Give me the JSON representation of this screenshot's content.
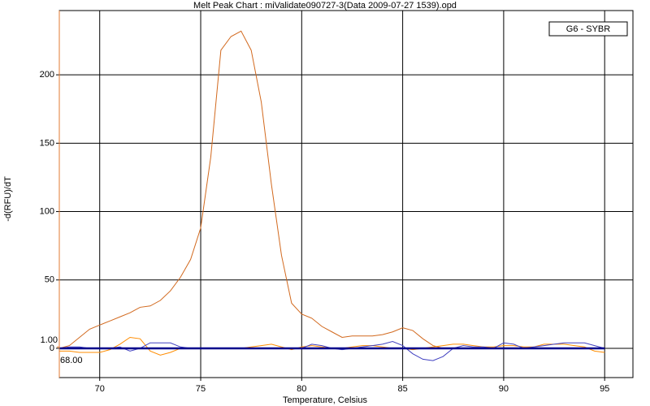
{
  "chart_data": {
    "type": "line",
    "title": "Melt Peak Chart : miValidate090727-3(Data 2009-07-27 1539).opd",
    "x_label": "Temperature, Celsius",
    "y_label": "-d(RFU)/dT",
    "legend": "G6 - SYBR",
    "grid": true,
    "xlim": [
      68,
      96.4
    ],
    "ylim": [
      -21.4,
      247
    ],
    "xticks": [
      70,
      75,
      80,
      85,
      90,
      95
    ],
    "yticks": [
      0,
      50,
      100,
      150,
      200
    ],
    "marker": {
      "x": {
        "value": 68,
        "label": "68.00"
      },
      "y": {
        "value": 1,
        "label": "1.00"
      },
      "color": "#e07a30"
    },
    "x": [
      68,
      68.5,
      69,
      69.5,
      70,
      70.5,
      71,
      71.5,
      72,
      72.5,
      73,
      73.5,
      74,
      74.5,
      75,
      75.5,
      76,
      76.5,
      77,
      77.5,
      78,
      78.5,
      79,
      79.5,
      80,
      80.5,
      81,
      81.5,
      82,
      82.5,
      83,
      83.5,
      84,
      84.5,
      85,
      85.5,
      86,
      86.5,
      87,
      87.5,
      88,
      88.5,
      89,
      89.5,
      90,
      90.5,
      91,
      91.5,
      92,
      92.5,
      93,
      93.5,
      94,
      94.5,
      95
    ],
    "series": [
      {
        "color": "#d2691e",
        "width": 1,
        "values": [
          0,
          2,
          8,
          14,
          17,
          20,
          23,
          26,
          30,
          31,
          35,
          42,
          52,
          65,
          88,
          140,
          218,
          228,
          232,
          218,
          180,
          120,
          68,
          33,
          25,
          22,
          16,
          12,
          8,
          9,
          9,
          9,
          10,
          12,
          15,
          13,
          7,
          2,
          0,
          0,
          0,
          0,
          0,
          0,
          0,
          0,
          0,
          0,
          0,
          0,
          0,
          0,
          0,
          0,
          0
        ]
      },
      {
        "color": "#ff8c00",
        "width": 1,
        "values": [
          -2,
          -2,
          -3,
          -3,
          -3,
          -1,
          3,
          8,
          7,
          -2,
          -5,
          -3,
          0,
          0,
          0,
          0,
          0,
          0,
          0,
          1,
          2,
          3,
          1,
          -1,
          1,
          2,
          1,
          0,
          0,
          1,
          2,
          2,
          1,
          0,
          0,
          -1,
          0,
          1,
          2,
          3,
          3,
          2,
          1,
          1,
          2,
          2,
          1,
          1,
          3,
          3,
          3,
          2,
          1,
          -2,
          -3
        ]
      },
      {
        "color": "#4040c0",
        "width": 1,
        "values": [
          0,
          1,
          1,
          0,
          0,
          0,
          1,
          -2,
          0,
          4,
          4,
          4,
          1,
          0,
          0,
          0,
          0,
          0,
          0,
          0,
          0,
          0,
          0,
          0,
          0,
          3,
          2,
          0,
          -1,
          0,
          1,
          2,
          3,
          5,
          2,
          -4,
          -8,
          -9,
          -6,
          0,
          2,
          1,
          1,
          0,
          4,
          3,
          0,
          1,
          2,
          3,
          4,
          4,
          4,
          2,
          0
        ]
      },
      {
        "color": "#00008b",
        "width": 2.5,
        "values": [
          0,
          0,
          0,
          0,
          0,
          0,
          0,
          0,
          0,
          0,
          0,
          0,
          0,
          0,
          0,
          0,
          0,
          0,
          0,
          0,
          0,
          0,
          0,
          0,
          0,
          0,
          0,
          0,
          0,
          0,
          0,
          0,
          0,
          0,
          0,
          0,
          0,
          0,
          0,
          0,
          0,
          0,
          0,
          0,
          0,
          0,
          0,
          0,
          0,
          0,
          0,
          0,
          0,
          0,
          0
        ]
      }
    ]
  }
}
